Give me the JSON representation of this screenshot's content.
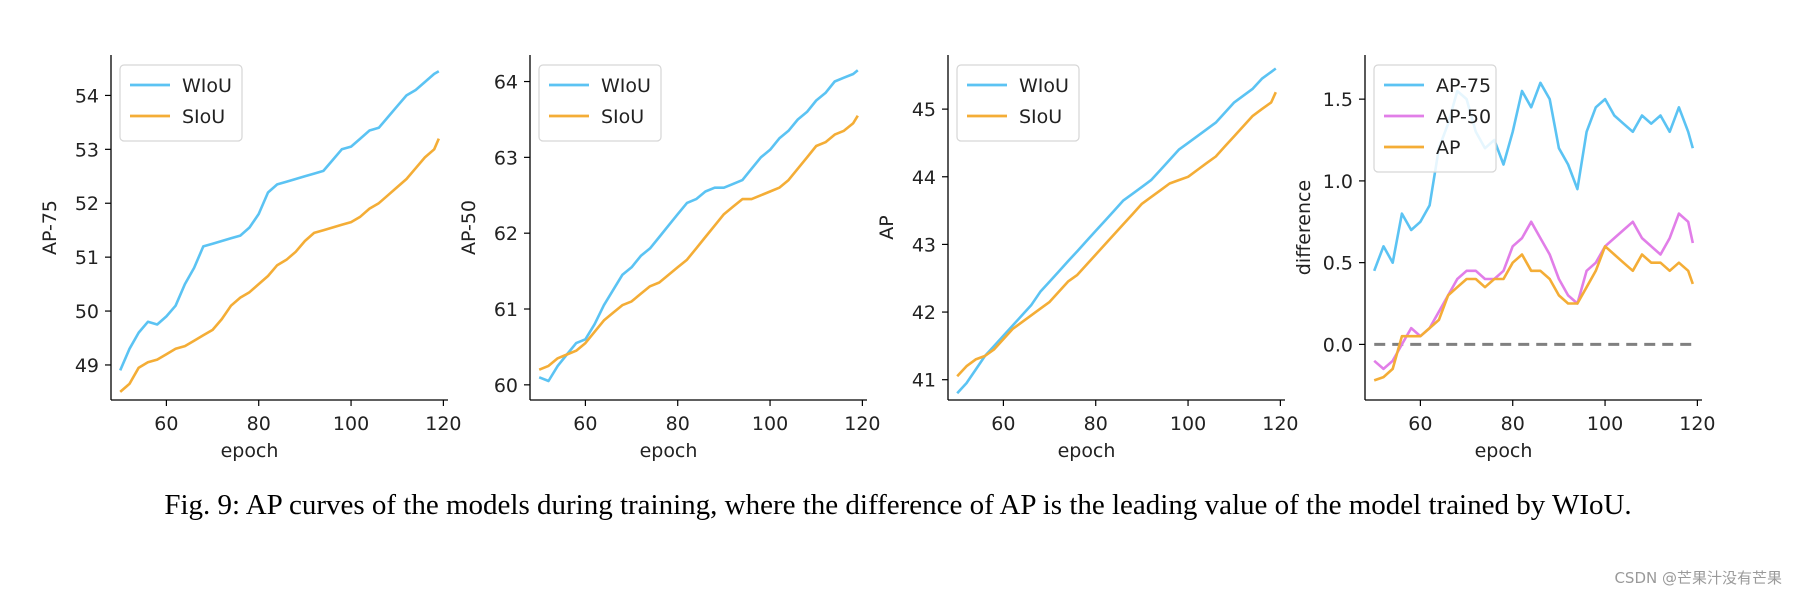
{
  "caption": "Fig. 9: AP curves of the models during training, where the difference of AP is the leading value of the model trained by WIoU.",
  "watermark": "CSDN @芒果汁没有芒果",
  "colors": {
    "wiou": "#5bc3f3",
    "siou": "#f4ad36",
    "ap50": "#e17ee8",
    "zero_line": "#808080"
  },
  "chart_data": [
    {
      "type": "line",
      "xlabel": "epoch",
      "ylabel": "AP-75",
      "xlim": [
        48,
        121
      ],
      "ylim": [
        48.35,
        54.75
      ],
      "xticks": [
        60,
        80,
        100,
        120
      ],
      "yticks": [
        49,
        50,
        51,
        52,
        53,
        54
      ],
      "legend": "top-left",
      "series": [
        {
          "name": "WIoU",
          "color": "#5bc3f3",
          "x": [
            50,
            52,
            54,
            56,
            58,
            60,
            62,
            64,
            66,
            68,
            70,
            72,
            74,
            76,
            78,
            80,
            82,
            84,
            86,
            88,
            90,
            92,
            94,
            96,
            98,
            100,
            102,
            104,
            106,
            108,
            110,
            112,
            114,
            116,
            118,
            119
          ],
          "y": [
            48.9,
            49.3,
            49.6,
            49.8,
            49.75,
            49.9,
            50.1,
            50.5,
            50.8,
            51.2,
            51.25,
            51.3,
            51.35,
            51.4,
            51.55,
            51.8,
            52.2,
            52.35,
            52.4,
            52.45,
            52.5,
            52.55,
            52.6,
            52.8,
            53.0,
            53.05,
            53.2,
            53.35,
            53.4,
            53.6,
            53.8,
            54.0,
            54.1,
            54.25,
            54.4,
            54.45
          ]
        },
        {
          "name": "SIoU",
          "color": "#f4ad36",
          "x": [
            50,
            52,
            54,
            56,
            58,
            60,
            62,
            64,
            66,
            68,
            70,
            72,
            74,
            76,
            78,
            80,
            82,
            84,
            86,
            88,
            90,
            92,
            94,
            96,
            98,
            100,
            102,
            104,
            106,
            108,
            110,
            112,
            114,
            116,
            118,
            119
          ],
          "y": [
            48.5,
            48.65,
            48.95,
            49.05,
            49.1,
            49.2,
            49.3,
            49.35,
            49.45,
            49.55,
            49.65,
            49.85,
            50.1,
            50.25,
            50.35,
            50.5,
            50.65,
            50.85,
            50.95,
            51.1,
            51.3,
            51.45,
            51.5,
            51.55,
            51.6,
            51.65,
            51.75,
            51.9,
            52.0,
            52.15,
            52.3,
            52.45,
            52.65,
            52.85,
            53.0,
            53.2
          ]
        }
      ]
    },
    {
      "type": "line",
      "xlabel": "epoch",
      "ylabel": "AP-50",
      "xlim": [
        48,
        121
      ],
      "ylim": [
        59.8,
        64.35
      ],
      "xticks": [
        60,
        80,
        100,
        120
      ],
      "yticks": [
        60,
        61,
        62,
        63,
        64
      ],
      "legend": "top-left",
      "series": [
        {
          "name": "WIoU",
          "color": "#5bc3f3",
          "x": [
            50,
            52,
            54,
            56,
            58,
            60,
            62,
            64,
            66,
            68,
            70,
            72,
            74,
            76,
            78,
            80,
            82,
            84,
            86,
            88,
            90,
            92,
            94,
            96,
            98,
            100,
            102,
            104,
            106,
            108,
            110,
            112,
            114,
            116,
            118,
            119
          ],
          "y": [
            60.1,
            60.05,
            60.25,
            60.4,
            60.55,
            60.6,
            60.8,
            61.05,
            61.25,
            61.45,
            61.55,
            61.7,
            61.8,
            61.95,
            62.1,
            62.25,
            62.4,
            62.45,
            62.55,
            62.6,
            62.6,
            62.65,
            62.7,
            62.85,
            63.0,
            63.1,
            63.25,
            63.35,
            63.5,
            63.6,
            63.75,
            63.85,
            64.0,
            64.05,
            64.1,
            64.15
          ]
        },
        {
          "name": "SIoU",
          "color": "#f4ad36",
          "x": [
            50,
            52,
            54,
            56,
            58,
            60,
            62,
            64,
            66,
            68,
            70,
            72,
            74,
            76,
            78,
            80,
            82,
            84,
            86,
            88,
            90,
            92,
            94,
            96,
            98,
            100,
            102,
            104,
            106,
            108,
            110,
            112,
            114,
            116,
            118,
            119
          ],
          "y": [
            60.2,
            60.25,
            60.35,
            60.4,
            60.45,
            60.55,
            60.7,
            60.85,
            60.95,
            61.05,
            61.1,
            61.2,
            61.3,
            61.35,
            61.45,
            61.55,
            61.65,
            61.8,
            61.95,
            62.1,
            62.25,
            62.35,
            62.45,
            62.45,
            62.5,
            62.55,
            62.6,
            62.7,
            62.85,
            63.0,
            63.15,
            63.2,
            63.3,
            63.35,
            63.45,
            63.55
          ]
        }
      ]
    },
    {
      "type": "line",
      "xlabel": "epoch",
      "ylabel": "AP",
      "xlim": [
        48,
        121
      ],
      "ylim": [
        40.7,
        45.8
      ],
      "xticks": [
        60,
        80,
        100,
        120
      ],
      "yticks": [
        41,
        42,
        43,
        44,
        45
      ],
      "legend": "top-left",
      "series": [
        {
          "name": "WIoU",
          "color": "#5bc3f3",
          "x": [
            50,
            52,
            54,
            56,
            58,
            60,
            62,
            64,
            66,
            68,
            70,
            72,
            74,
            76,
            78,
            80,
            82,
            84,
            86,
            88,
            90,
            92,
            94,
            96,
            98,
            100,
            102,
            104,
            106,
            108,
            110,
            112,
            114,
            116,
            118,
            119
          ],
          "y": [
            40.8,
            40.95,
            41.15,
            41.35,
            41.5,
            41.65,
            41.8,
            41.95,
            42.1,
            42.3,
            42.45,
            42.6,
            42.75,
            42.9,
            43.05,
            43.2,
            43.35,
            43.5,
            43.65,
            43.75,
            43.85,
            43.95,
            44.1,
            44.25,
            44.4,
            44.5,
            44.6,
            44.7,
            44.8,
            44.95,
            45.1,
            45.2,
            45.3,
            45.45,
            45.55,
            45.6
          ]
        },
        {
          "name": "SIoU",
          "color": "#f4ad36",
          "x": [
            50,
            52,
            54,
            56,
            58,
            60,
            62,
            64,
            66,
            68,
            70,
            72,
            74,
            76,
            78,
            80,
            82,
            84,
            86,
            88,
            90,
            92,
            94,
            96,
            98,
            100,
            102,
            104,
            106,
            108,
            110,
            112,
            114,
            116,
            118,
            119
          ],
          "y": [
            41.05,
            41.2,
            41.3,
            41.35,
            41.45,
            41.6,
            41.75,
            41.85,
            41.95,
            42.05,
            42.15,
            42.3,
            42.45,
            42.55,
            42.7,
            42.85,
            43.0,
            43.15,
            43.3,
            43.45,
            43.6,
            43.7,
            43.8,
            43.9,
            43.95,
            44.0,
            44.1,
            44.2,
            44.3,
            44.45,
            44.6,
            44.75,
            44.9,
            45.0,
            45.1,
            45.25
          ]
        }
      ]
    },
    {
      "type": "line",
      "xlabel": "epoch",
      "ylabel": "difference",
      "xlim": [
        48,
        121
      ],
      "ylim": [
        -0.34,
        1.77
      ],
      "xticks": [
        60,
        80,
        100,
        120
      ],
      "yticks": [
        0.0,
        0.5,
        1.0,
        1.5
      ],
      "legend": "top-left",
      "reference_line": {
        "y": 0.0,
        "dashed": true
      },
      "series": [
        {
          "name": "AP-75",
          "color": "#5bc3f3",
          "x": [
            50,
            52,
            54,
            56,
            58,
            60,
            62,
            64,
            66,
            68,
            70,
            72,
            74,
            76,
            78,
            80,
            82,
            84,
            86,
            88,
            90,
            92,
            94,
            96,
            98,
            100,
            102,
            104,
            106,
            108,
            110,
            112,
            114,
            116,
            118,
            119
          ],
          "y": [
            0.45,
            0.6,
            0.5,
            0.8,
            0.7,
            0.75,
            0.85,
            1.2,
            1.35,
            1.55,
            1.5,
            1.3,
            1.2,
            1.25,
            1.1,
            1.3,
            1.55,
            1.45,
            1.6,
            1.5,
            1.2,
            1.1,
            0.95,
            1.3,
            1.45,
            1.5,
            1.4,
            1.35,
            1.3,
            1.4,
            1.35,
            1.4,
            1.3,
            1.45,
            1.3,
            1.2
          ]
        },
        {
          "name": "AP-50",
          "color": "#e17ee8",
          "x": [
            50,
            52,
            54,
            56,
            58,
            60,
            62,
            64,
            66,
            68,
            70,
            72,
            74,
            76,
            78,
            80,
            82,
            84,
            86,
            88,
            90,
            92,
            94,
            96,
            98,
            100,
            102,
            104,
            106,
            108,
            110,
            112,
            114,
            116,
            118,
            119
          ],
          "y": [
            -0.1,
            -0.15,
            -0.1,
            0.0,
            0.1,
            0.05,
            0.1,
            0.2,
            0.3,
            0.4,
            0.45,
            0.45,
            0.4,
            0.4,
            0.45,
            0.6,
            0.65,
            0.75,
            0.65,
            0.55,
            0.4,
            0.3,
            0.25,
            0.45,
            0.5,
            0.6,
            0.65,
            0.7,
            0.75,
            0.65,
            0.6,
            0.55,
            0.65,
            0.8,
            0.75,
            0.62
          ]
        },
        {
          "name": "AP",
          "color": "#f4ad36",
          "x": [
            50,
            52,
            54,
            56,
            58,
            60,
            62,
            64,
            66,
            68,
            70,
            72,
            74,
            76,
            78,
            80,
            82,
            84,
            86,
            88,
            90,
            92,
            94,
            96,
            98,
            100,
            102,
            104,
            106,
            108,
            110,
            112,
            114,
            116,
            118,
            119
          ],
          "y": [
            -0.22,
            -0.2,
            -0.15,
            0.05,
            0.05,
            0.05,
            0.1,
            0.15,
            0.3,
            0.35,
            0.4,
            0.4,
            0.35,
            0.4,
            0.4,
            0.5,
            0.55,
            0.45,
            0.45,
            0.4,
            0.3,
            0.25,
            0.25,
            0.35,
            0.45,
            0.6,
            0.55,
            0.5,
            0.45,
            0.55,
            0.5,
            0.5,
            0.45,
            0.5,
            0.45,
            0.37
          ]
        }
      ]
    }
  ]
}
